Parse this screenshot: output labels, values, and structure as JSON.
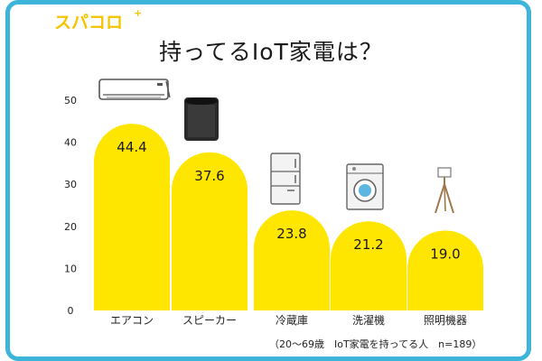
{
  "brand": {
    "logo_text": "スパコロ"
  },
  "chart_data": {
    "type": "bar",
    "title": "持ってるIoT家電は？",
    "categories": [
      "エアコン",
      "スピーカー",
      "冷蔵庫",
      "洗濯機",
      "照明機器"
    ],
    "values": [
      44.4,
      37.6,
      23.8,
      21.2,
      19.0
    ],
    "value_labels": [
      "44.4",
      "37.6",
      "23.8",
      "21.2",
      "19.0"
    ],
    "ylim": [
      0,
      50
    ],
    "yticks": [
      "0",
      "10",
      "20",
      "30",
      "40",
      "50"
    ],
    "grid": false,
    "bar_color": "#ffe600",
    "icons": [
      "air-conditioner-icon",
      "smart-speaker-icon",
      "refrigerator-icon",
      "washing-machine-icon",
      "floor-lamp-icon"
    ],
    "note": "（20～69歳　IoT家電を持ってる人　n=189）"
  },
  "colors": {
    "frame": "#3db4d9",
    "logo": "#f5c400"
  }
}
